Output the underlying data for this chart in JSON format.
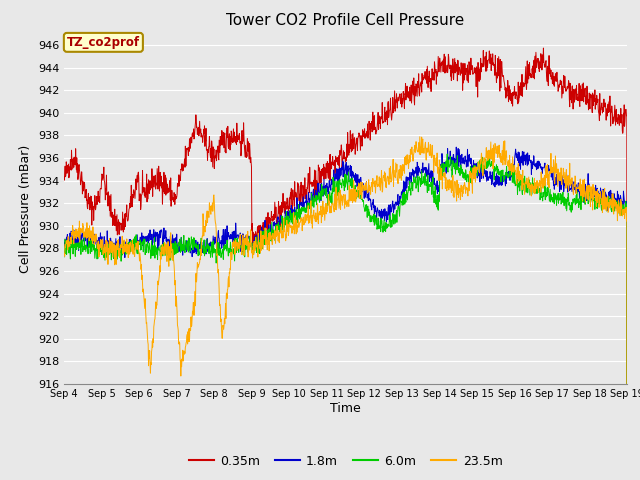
{
  "title": "Tower CO2 Profile Cell Pressure",
  "xlabel": "Time",
  "ylabel": "Cell Pressure (mBar)",
  "ylim": [
    916,
    947
  ],
  "yticks": [
    916,
    918,
    920,
    922,
    924,
    926,
    928,
    930,
    932,
    934,
    936,
    938,
    940,
    942,
    944,
    946
  ],
  "x_labels": [
    "Sep 4",
    "Sep 5",
    "Sep 6",
    "Sep 7",
    "Sep 8",
    "Sep 9",
    "Sep 10",
    "Sep 11",
    "Sep 12",
    "Sep 13",
    "Sep 14",
    "Sep 15",
    "Sep 16",
    "Sep 17",
    "Sep 18",
    "Sep 19"
  ],
  "n_points": 1500,
  "colors": {
    "red": "#cc0000",
    "blue": "#0000cc",
    "green": "#00cc00",
    "orange": "#ffaa00"
  },
  "legend_labels": [
    "0.35m",
    "1.8m",
    "6.0m",
    "23.5m"
  ],
  "tag_label": "TZ_co2prof",
  "tag_bg": "#ffffcc",
  "tag_border": "#aa8800",
  "plot_bg": "#e8e8e8",
  "fig_bg": "#e8e8e8",
  "grid_color": "#ffffff",
  "title_fontsize": 11,
  "axis_fontsize": 9,
  "tick_fontsize": 8
}
